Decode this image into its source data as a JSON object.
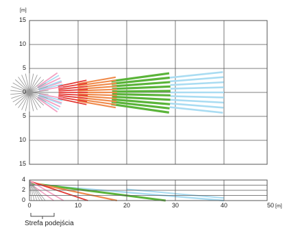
{
  "top_view": {
    "unit_label": "[m]",
    "y_tick_labels": [
      "15",
      "10",
      "5",
      "0",
      "5",
      "10",
      "15"
    ]
  },
  "side_view": {
    "y_tick_labels": [
      "4",
      "2",
      "0"
    ],
    "x_tick_labels": [
      "0",
      "10",
      "20",
      "30",
      "40",
      "50"
    ],
    "x_unit_label": "[m]"
  },
  "approach_zone_label": "Strefa podejścia",
  "colors": {
    "approach": "#9a9a9a",
    "pink": "#f3a0c2",
    "red": "#e53935",
    "orange": "#f08a4b",
    "green": "#5ab439",
    "light_blue": "#a9dcf2",
    "grid": "#555555"
  },
  "detection_zones": [
    {
      "name": "pink",
      "reach_m": 7
    },
    {
      "name": "red",
      "reach_m": 12
    },
    {
      "name": "orange",
      "reach_m": 18
    },
    {
      "name": "green",
      "reach_m": 29
    },
    {
      "name": "light_blue",
      "reach_m": 40
    }
  ]
}
